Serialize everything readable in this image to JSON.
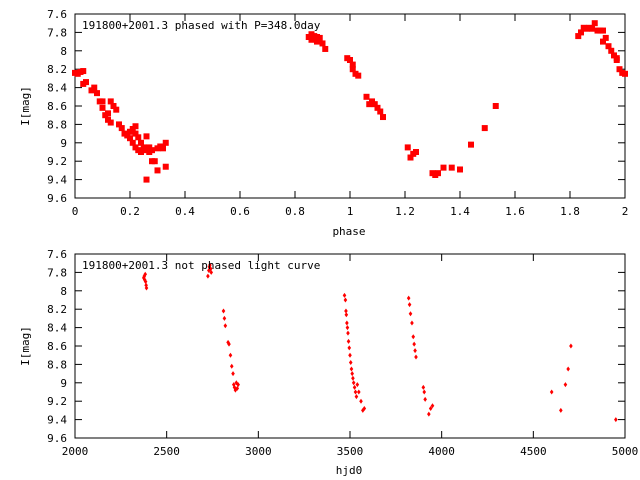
{
  "chart_data": [
    {
      "type": "scatter",
      "title": "191800+2001.3 phased with P=348.0day",
      "xlabel": "phase",
      "ylabel": "I[mag]",
      "xlim": [
        0,
        2
      ],
      "ylim": [
        7.6,
        9.6
      ],
      "y_inverted": true,
      "grid": false,
      "marker": "filled-square",
      "color": "#ff0000",
      "x_ticks": [
        "0",
        "0.2",
        "0.4",
        "0.6",
        "0.8",
        "1",
        "1.2",
        "1.4",
        "1.6",
        "1.8",
        "2"
      ],
      "y_ticks": [
        "7.6",
        "7.8",
        "8",
        "8.2",
        "8.4",
        "8.6",
        "8.8",
        "9",
        "9.2",
        "9.4",
        "9.6"
      ],
      "series": [
        {
          "points": [
            [
              0.0,
              8.24
            ],
            [
              0.01,
              8.25
            ],
            [
              0.02,
              8.23
            ],
            [
              0.03,
              8.22
            ],
            [
              0.03,
              8.36
            ],
            [
              0.04,
              8.34
            ],
            [
              0.06,
              8.43
            ],
            [
              0.07,
              8.4
            ],
            [
              0.08,
              8.46
            ],
            [
              0.09,
              8.55
            ],
            [
              0.1,
              8.55
            ],
            [
              0.1,
              8.62
            ],
            [
              0.11,
              8.7
            ],
            [
              0.12,
              8.68
            ],
            [
              0.12,
              8.75
            ],
            [
              0.13,
              8.78
            ],
            [
              0.13,
              8.55
            ],
            [
              0.14,
              8.6
            ],
            [
              0.15,
              8.64
            ],
            [
              0.16,
              8.8
            ],
            [
              0.17,
              8.84
            ],
            [
              0.18,
              8.9
            ],
            [
              0.19,
              8.92
            ],
            [
              0.2,
              8.88
            ],
            [
              0.2,
              8.95
            ],
            [
              0.21,
              8.85
            ],
            [
              0.21,
              9.0
            ],
            [
              0.22,
              8.9
            ],
            [
              0.22,
              8.82
            ],
            [
              0.22,
              9.05
            ],
            [
              0.23,
              9.08
            ],
            [
              0.23,
              8.94
            ],
            [
              0.24,
              9.1
            ],
            [
              0.24,
              9.0
            ],
            [
              0.25,
              9.05
            ],
            [
              0.25,
              9.08
            ],
            [
              0.26,
              8.93
            ],
            [
              0.26,
              9.4
            ],
            [
              0.27,
              9.05
            ],
            [
              0.27,
              9.1
            ],
            [
              0.28,
              9.2
            ],
            [
              0.28,
              9.08
            ],
            [
              0.29,
              9.2
            ],
            [
              0.3,
              9.06
            ],
            [
              0.3,
              9.3
            ],
            [
              0.31,
              9.04
            ],
            [
              0.32,
              9.06
            ],
            [
              0.33,
              9.0
            ],
            [
              0.33,
              9.26
            ],
            [
              0.85,
              7.85
            ],
            [
              0.86,
              7.88
            ],
            [
              0.86,
              7.82
            ],
            [
              0.87,
              7.86
            ],
            [
              0.87,
              7.84
            ],
            [
              0.88,
              7.9
            ],
            [
              0.88,
              7.85
            ],
            [
              0.89,
              7.86
            ],
            [
              0.9,
              7.92
            ],
            [
              0.91,
              7.98
            ],
            [
              0.99,
              8.08
            ],
            [
              1.0,
              8.1
            ],
            [
              1.01,
              8.15
            ],
            [
              1.01,
              8.2
            ],
            [
              1.02,
              8.25
            ],
            [
              1.03,
              8.27
            ],
            [
              1.06,
              8.5
            ],
            [
              1.07,
              8.58
            ],
            [
              1.08,
              8.55
            ],
            [
              1.09,
              8.58
            ],
            [
              1.1,
              8.62
            ],
            [
              1.11,
              8.66
            ],
            [
              1.12,
              8.72
            ],
            [
              1.21,
              9.05
            ],
            [
              1.22,
              9.16
            ],
            [
              1.23,
              9.12
            ],
            [
              1.24,
              9.1
            ],
            [
              1.3,
              9.33
            ],
            [
              1.31,
              9.35
            ],
            [
              1.32,
              9.33
            ],
            [
              1.34,
              9.27
            ],
            [
              1.37,
              9.27
            ],
            [
              1.4,
              9.29
            ],
            [
              1.44,
              9.02
            ],
            [
              1.49,
              8.84
            ],
            [
              1.53,
              8.6
            ],
            [
              1.83,
              7.84
            ],
            [
              1.84,
              7.8
            ],
            [
              1.85,
              7.75
            ],
            [
              1.86,
              7.76
            ],
            [
              1.87,
              7.75
            ],
            [
              1.88,
              7.76
            ],
            [
              1.89,
              7.7
            ],
            [
              1.9,
              7.78
            ],
            [
              1.91,
              7.78
            ],
            [
              1.92,
              7.78
            ],
            [
              1.92,
              7.9
            ],
            [
              1.93,
              7.86
            ],
            [
              1.94,
              7.95
            ],
            [
              1.95,
              8.0
            ],
            [
              1.96,
              8.05
            ],
            [
              1.97,
              8.08
            ],
            [
              1.97,
              8.1
            ],
            [
              1.98,
              8.2
            ],
            [
              1.99,
              8.24
            ],
            [
              2.0,
              8.25
            ]
          ]
        }
      ]
    },
    {
      "type": "scatter",
      "title": "191800+2001.3 not phased light curve",
      "xlabel": "hjd0",
      "ylabel": "I[mag]",
      "xlim": [
        2000,
        5000
      ],
      "ylim": [
        7.6,
        9.6
      ],
      "y_inverted": true,
      "grid": false,
      "marker": "small-diamond",
      "color": "#ff0000",
      "x_ticks": [
        "2000",
        "2500",
        "3000",
        "3500",
        "4000",
        "4500",
        "5000"
      ],
      "y_ticks": [
        "7.6",
        "7.8",
        "8",
        "8.2",
        "8.4",
        "8.6",
        "8.8",
        "9",
        "9.2",
        "9.4",
        "9.6"
      ],
      "series": [
        {
          "points": [
            [
              2375,
              7.86
            ],
            [
              2378,
              7.84
            ],
            [
              2380,
              7.88
            ],
            [
              2383,
              7.82
            ],
            [
              2385,
              7.9
            ],
            [
              2388,
              7.94
            ],
            [
              2390,
              7.97
            ],
            [
              2725,
              7.84
            ],
            [
              2730,
              7.78
            ],
            [
              2733,
              7.74
            ],
            [
              2736,
              7.72
            ],
            [
              2740,
              7.76
            ],
            [
              2743,
              7.8
            ],
            [
              2810,
              8.22
            ],
            [
              2815,
              8.3
            ],
            [
              2820,
              8.38
            ],
            [
              2835,
              8.56
            ],
            [
              2840,
              8.58
            ],
            [
              2848,
              8.7
            ],
            [
              2855,
              8.82
            ],
            [
              2862,
              8.9
            ],
            [
              2866,
              9.02
            ],
            [
              2870,
              9.05
            ],
            [
              2875,
              9.08
            ],
            [
              2880,
              9.0
            ],
            [
              2885,
              9.06
            ],
            [
              2890,
              9.02
            ],
            [
              3470,
              8.05
            ],
            [
              3475,
              8.1
            ],
            [
              3478,
              8.22
            ],
            [
              3480,
              8.26
            ],
            [
              3483,
              8.35
            ],
            [
              3486,
              8.4
            ],
            [
              3489,
              8.46
            ],
            [
              3492,
              8.55
            ],
            [
              3496,
              8.62
            ],
            [
              3500,
              8.7
            ],
            [
              3504,
              8.78
            ],
            [
              3508,
              8.85
            ],
            [
              3512,
              8.9
            ],
            [
              3516,
              8.95
            ],
            [
              3520,
              9.0
            ],
            [
              3525,
              9.05
            ],
            [
              3530,
              9.1
            ],
            [
              3535,
              9.15
            ],
            [
              3540,
              9.02
            ],
            [
              3548,
              9.1
            ],
            [
              3560,
              9.2
            ],
            [
              3570,
              9.3
            ],
            [
              3578,
              9.28
            ],
            [
              3820,
              8.08
            ],
            [
              3825,
              8.15
            ],
            [
              3830,
              8.25
            ],
            [
              3838,
              8.35
            ],
            [
              3845,
              8.5
            ],
            [
              3850,
              8.58
            ],
            [
              3855,
              8.65
            ],
            [
              3860,
              8.72
            ],
            [
              3900,
              9.05
            ],
            [
              3905,
              9.1
            ],
            [
              3910,
              9.18
            ],
            [
              3930,
              9.34
            ],
            [
              3940,
              9.28
            ],
            [
              3950,
              9.25
            ],
            [
              4600,
              9.1
            ],
            [
              4650,
              9.3
            ],
            [
              4675,
              9.02
            ],
            [
              4690,
              8.85
            ],
            [
              4705,
              8.6
            ],
            [
              4950,
              9.4
            ]
          ]
        }
      ]
    }
  ]
}
